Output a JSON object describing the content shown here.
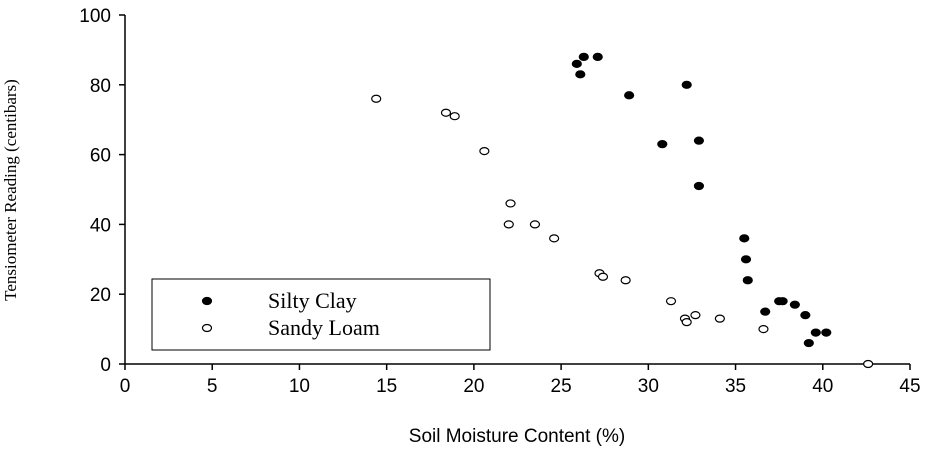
{
  "chart_data": {
    "type": "scatter",
    "xlabel": "Soil Moisture Content (%)",
    "ylabel": "Tensiometer Reading (centibars)",
    "xlim": [
      0,
      45
    ],
    "xticks": [
      0,
      5,
      10,
      15,
      20,
      25,
      30,
      35,
      40,
      45
    ],
    "ylim": [
      0,
      100
    ],
    "yticks": [
      0,
      20,
      40,
      60,
      80,
      100
    ],
    "legend": "lower left",
    "series": [
      {
        "name": "Silty Clay",
        "color": "#000000",
        "filled": true,
        "x": [
          25.9,
          26.3,
          27.1,
          26.1,
          28.9,
          32.2,
          30.8,
          32.9,
          32.9,
          35.5,
          35.6,
          35.7,
          36.7,
          37.5,
          37.7,
          38.4,
          39.0,
          39.6,
          40.2,
          39.2
        ],
        "values": [
          86,
          88,
          88,
          83,
          77,
          80,
          63,
          64,
          51,
          36,
          30,
          24,
          15,
          18,
          18,
          17,
          14,
          9,
          9,
          6
        ]
      },
      {
        "name": "Sandy Loam",
        "color": "#000000",
        "filled": false,
        "x": [
          14.4,
          18.4,
          18.9,
          20.6,
          22.1,
          22.0,
          23.5,
          24.6,
          27.2,
          27.4,
          28.7,
          31.3,
          32.1,
          32.2,
          32.7,
          34.1,
          36.6,
          42.6
        ],
        "values": [
          76,
          72,
          71,
          61,
          46,
          40,
          40,
          36,
          26,
          25,
          24,
          18,
          13,
          12,
          14,
          13,
          10,
          0
        ]
      }
    ]
  }
}
